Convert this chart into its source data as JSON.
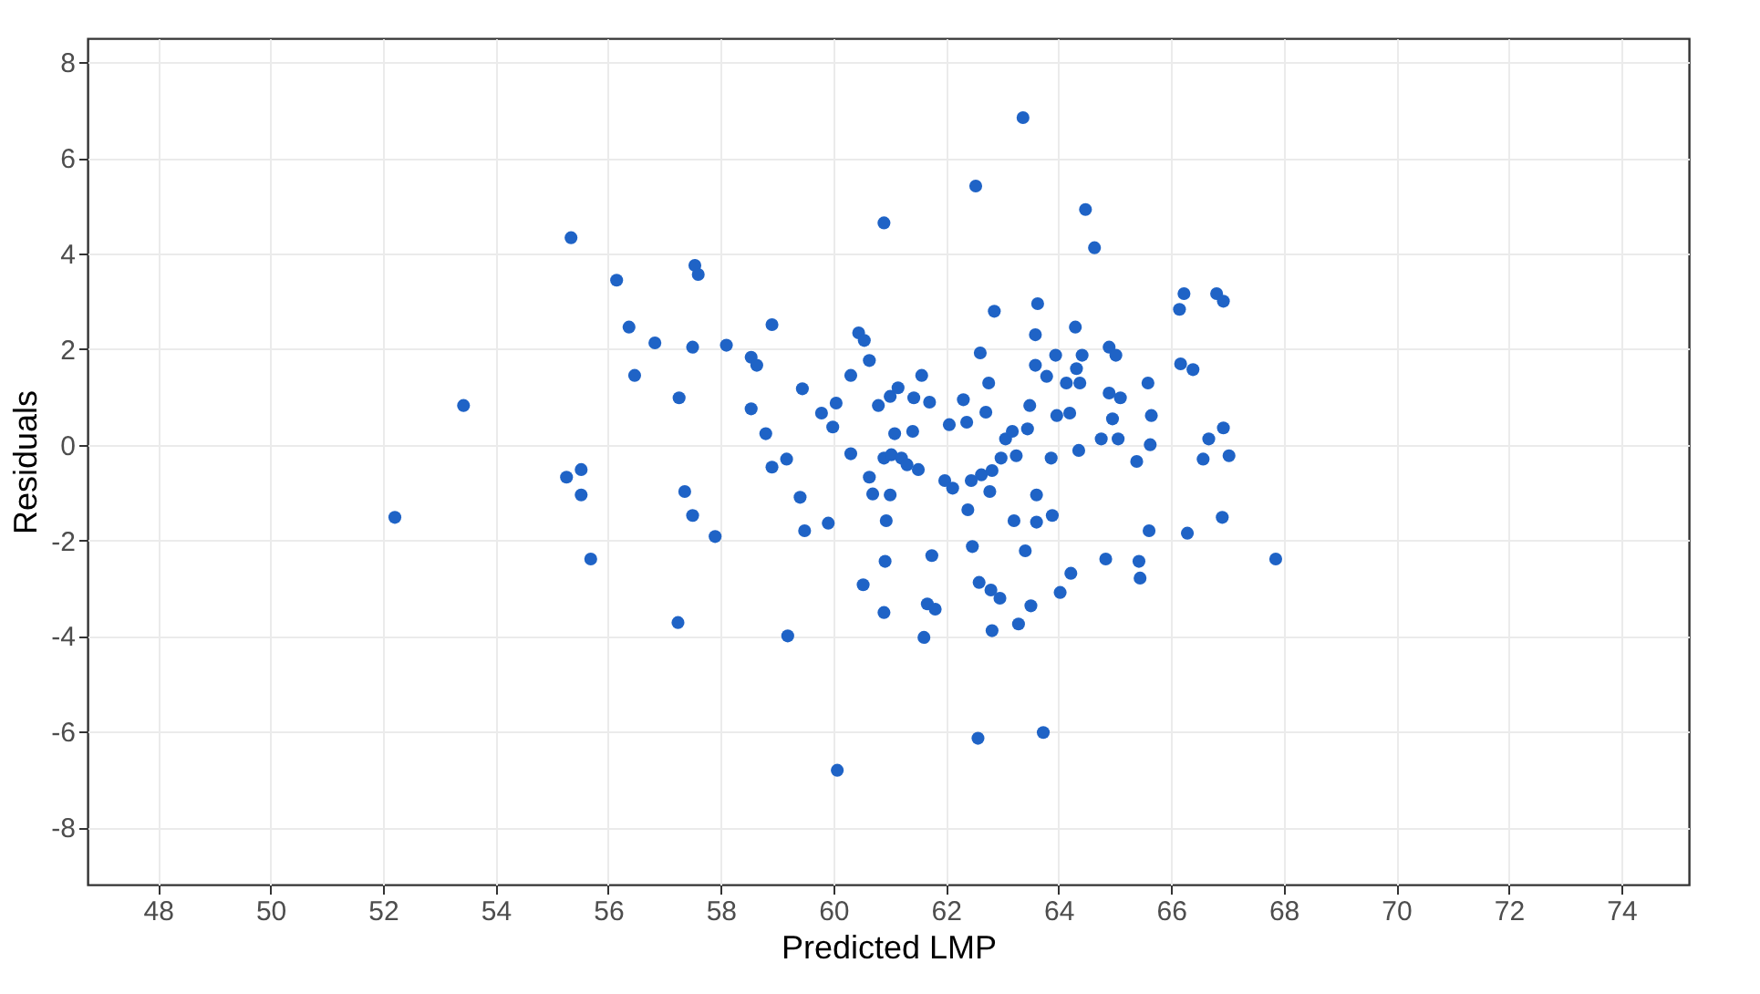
{
  "chart_data": {
    "type": "scatter",
    "xlabel": "Predicted LMP",
    "ylabel": "Residuals",
    "xlim": [
      46.75,
      75.2
    ],
    "ylim": [
      -9.2,
      8.5
    ],
    "xticks": [
      48,
      50,
      52,
      54,
      56,
      58,
      60,
      62,
      64,
      66,
      68,
      70,
      72,
      74
    ],
    "yticks": [
      -8,
      -6,
      -4,
      -2,
      0,
      2,
      4,
      6,
      8
    ],
    "grid": true,
    "marker": "circle",
    "legend": false,
    "series": [
      {
        "color": "#1f63c6",
        "x": [
          52.21,
          53.43,
          55.34,
          55.26,
          55.52,
          55.52,
          55.69,
          56.15,
          56.37,
          56.47,
          56.83,
          57.26,
          57.24,
          57.36,
          57.54,
          57.6,
          57.5,
          57.5,
          57.9,
          58.1,
          58.54,
          58.64,
          58.54,
          58.8,
          58.91,
          58.91,
          59.17,
          59.19,
          59.45,
          59.41,
          59.49,
          59.79,
          59.91,
          59.99,
          60.05,
          60.07,
          60.31,
          60.31,
          60.45,
          60.55,
          60.53,
          60.64,
          60.64,
          60.7,
          60.8,
          60.9,
          60.9,
          60.92,
          60.9,
          60.94,
          61.01,
          61.03,
          61.01,
          61.15,
          61.09,
          61.21,
          61.31,
          61.41,
          61.43,
          61.51,
          61.57,
          61.71,
          61.61,
          61.67,
          61.81,
          61.75,
          61.98,
          62.12,
          62.06,
          62.31,
          62.37,
          62.39,
          62.45,
          62.47,
          62.53,
          62.61,
          62.59,
          62.57,
          62.63,
          62.71,
          62.76,
          62.78,
          62.82,
          62.8,
          62.82,
          62.86,
          62.96,
          62.98,
          63.06,
          63.18,
          63.21,
          63.25,
          63.29,
          63.37,
          63.41,
          63.45,
          63.49,
          63.51,
          63.59,
          63.63,
          63.59,
          63.61,
          63.61,
          63.73,
          63.79,
          63.87,
          63.89,
          63.95,
          63.97,
          64.03,
          64.14,
          64.2,
          64.22,
          64.3,
          64.32,
          64.38,
          64.36,
          64.42,
          64.48,
          64.64,
          64.76,
          64.84,
          64.9,
          64.9,
          64.96,
          65.02,
          65.1,
          65.06,
          65.39,
          65.43,
          65.45,
          65.59,
          65.65,
          65.63,
          65.61,
          66.15,
          66.23,
          66.17,
          66.39,
          66.29,
          66.57,
          66.67,
          66.81,
          66.93,
          66.93,
          67.03,
          66.91,
          67.86
        ],
        "values": [
          -1.52,
          0.82,
          4.33,
          -0.68,
          -0.52,
          -1.05,
          -2.39,
          3.44,
          2.46,
          1.45,
          2.13,
          0.98,
          -3.72,
          -0.98,
          3.75,
          3.56,
          2.04,
          -1.48,
          -1.92,
          2.08,
          1.83,
          1.66,
          0.75,
          0.23,
          2.51,
          -0.47,
          -0.3,
          -4.0,
          1.17,
          -1.1,
          -1.8,
          0.66,
          -1.64,
          0.37,
          0.87,
          -6.81,
          -0.19,
          1.45,
          2.34,
          2.18,
          -2.93,
          1.76,
          -0.68,
          -1.03,
          0.82,
          4.64,
          -0.28,
          -2.44,
          -3.51,
          -1.59,
          1.01,
          -0.21,
          -1.05,
          1.19,
          0.23,
          -0.28,
          -0.42,
          0.28,
          0.98,
          -0.52,
          1.45,
          0.89,
          -4.03,
          -3.33,
          -3.44,
          -2.32,
          -0.75,
          -0.91,
          0.42,
          0.94,
          0.47,
          -1.36,
          -0.75,
          -2.13,
          5.41,
          1.92,
          -2.88,
          -6.14,
          -0.63,
          0.68,
          1.29,
          -0.98,
          -0.54,
          -3.04,
          -3.89,
          2.79,
          -3.21,
          -0.28,
          0.12,
          0.28,
          -1.59,
          -0.23,
          -3.75,
          6.84,
          -2.22,
          0.33,
          0.82,
          -3.37,
          2.3,
          2.95,
          1.66,
          -1.05,
          -1.62,
          -6.02,
          1.43,
          -0.28,
          -1.48,
          1.87,
          0.61,
          -3.09,
          1.29,
          0.66,
          -2.69,
          2.46,
          1.59,
          1.29,
          -0.12,
          1.87,
          4.92,
          4.12,
          0.12,
          -2.39,
          1.08,
          2.04,
          0.54,
          1.87,
          0.98,
          0.12,
          -0.35,
          -2.44,
          -2.79,
          1.29,
          0.61,
          0.0,
          -1.8,
          2.83,
          3.16,
          1.69,
          1.57,
          -1.85,
          -0.3,
          0.12,
          3.16,
          3.0,
          0.35,
          -0.23,
          -1.52,
          -2.39
        ]
      }
    ]
  }
}
